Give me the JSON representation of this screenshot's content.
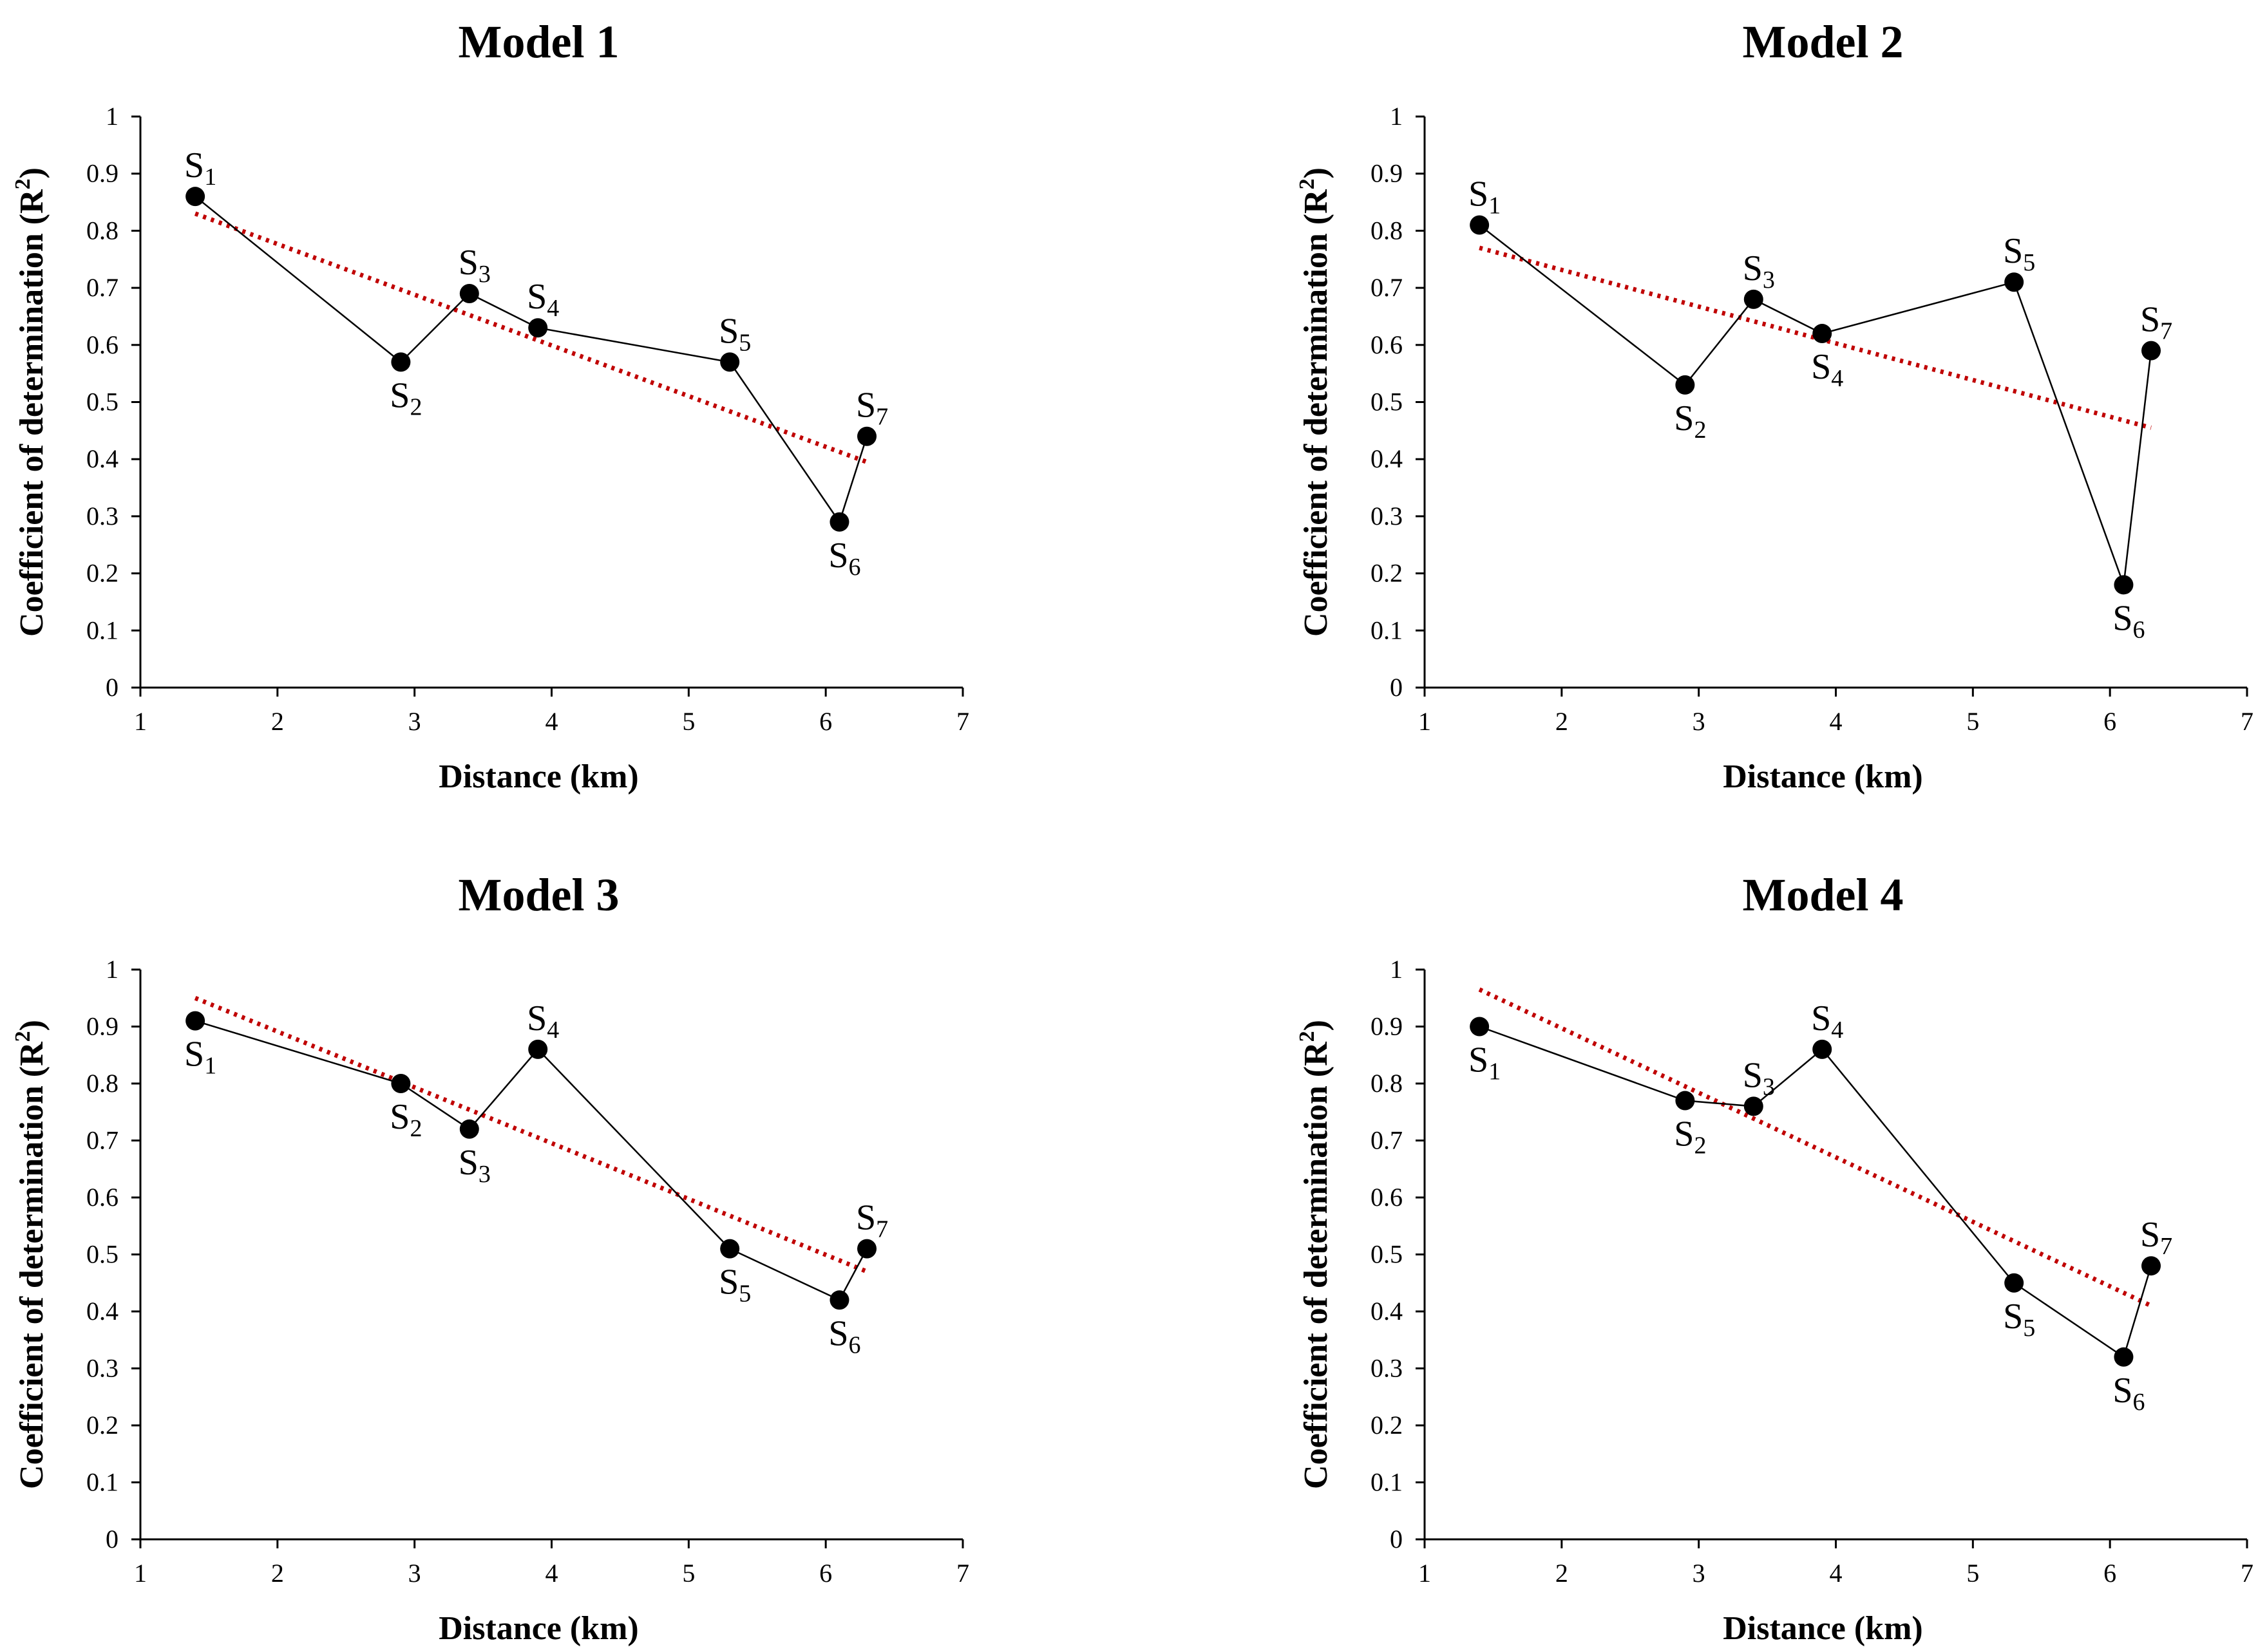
{
  "axis_defaults": {
    "ylabel_main": "Coefficient of determination (R",
    "ylabel_sup": "2",
    "ylabel_close": ")",
    "point_prefix": "S"
  },
  "colors": {
    "line": "#000000",
    "marker": "#000000",
    "trend": "#c00000",
    "axis": "#000000",
    "text": "#000000"
  },
  "chart_data": [
    {
      "type": "line",
      "title": "Model 1",
      "xlabel": "Distance (km)",
      "ylabel": "Coefficient of determination (R²)",
      "xlim": [
        1,
        7
      ],
      "ylim": [
        0,
        1
      ],
      "xticks": [
        "1",
        "2",
        "3",
        "4",
        "5",
        "6",
        "7"
      ],
      "yticks": [
        "0",
        "0.1",
        "0.2",
        "0.3",
        "0.4",
        "0.5",
        "0.6",
        "0.7",
        "0.8",
        "0.9",
        "1"
      ],
      "grid": false,
      "series": [
        {
          "name": "R²",
          "points": [
            {
              "label": "1",
              "x": 1.4,
              "y": 0.86,
              "pos": "above"
            },
            {
              "label": "2",
              "x": 2.9,
              "y": 0.57,
              "pos": "below"
            },
            {
              "label": "3",
              "x": 3.4,
              "y": 0.69,
              "pos": "above"
            },
            {
              "label": "4",
              "x": 3.9,
              "y": 0.63,
              "pos": "above"
            },
            {
              "label": "5",
              "x": 5.3,
              "y": 0.57,
              "pos": "above"
            },
            {
              "label": "6",
              "x": 6.1,
              "y": 0.29,
              "pos": "below"
            },
            {
              "label": "7",
              "x": 6.3,
              "y": 0.44,
              "pos": "above"
            }
          ]
        }
      ],
      "trendline": {
        "type": "linear",
        "x": [
          1.4,
          6.3
        ],
        "y": [
          0.83,
          0.395
        ]
      }
    },
    {
      "type": "line",
      "title": "Model 2",
      "xlabel": "Distance (km)",
      "ylabel": "Coefficient of determination (R²)",
      "xlim": [
        1,
        7
      ],
      "ylim": [
        0,
        1
      ],
      "xticks": [
        "1",
        "2",
        "3",
        "4",
        "5",
        "6",
        "7"
      ],
      "yticks": [
        "0",
        "0.1",
        "0.2",
        "0.3",
        "0.4",
        "0.5",
        "0.6",
        "0.7",
        "0.8",
        "0.9",
        "1"
      ],
      "grid": false,
      "series": [
        {
          "name": "R²",
          "points": [
            {
              "label": "1",
              "x": 1.4,
              "y": 0.81,
              "pos": "above"
            },
            {
              "label": "2",
              "x": 2.9,
              "y": 0.53,
              "pos": "below"
            },
            {
              "label": "3",
              "x": 3.4,
              "y": 0.68,
              "pos": "above"
            },
            {
              "label": "4",
              "x": 3.9,
              "y": 0.62,
              "pos": "below"
            },
            {
              "label": "5",
              "x": 5.3,
              "y": 0.71,
              "pos": "above"
            },
            {
              "label": "6",
              "x": 6.1,
              "y": 0.18,
              "pos": "below"
            },
            {
              "label": "7",
              "x": 6.3,
              "y": 0.59,
              "pos": "above"
            }
          ]
        }
      ],
      "trendline": {
        "type": "linear",
        "x": [
          1.4,
          6.3
        ],
        "y": [
          0.77,
          0.455
        ]
      }
    },
    {
      "type": "line",
      "title": "Model 3",
      "xlabel": "Distance (km)",
      "ylabel": "Coefficient of determination (R²)",
      "xlim": [
        1,
        7
      ],
      "ylim": [
        0,
        1
      ],
      "xticks": [
        "1",
        "2",
        "3",
        "4",
        "5",
        "6",
        "7"
      ],
      "yticks": [
        "0",
        "0.1",
        "0.2",
        "0.3",
        "0.4",
        "0.5",
        "0.6",
        "0.7",
        "0.8",
        "0.9",
        "1"
      ],
      "grid": false,
      "series": [
        {
          "name": "R²",
          "points": [
            {
              "label": "1",
              "x": 1.4,
              "y": 0.91,
              "pos": "below"
            },
            {
              "label": "2",
              "x": 2.9,
              "y": 0.8,
              "pos": "below"
            },
            {
              "label": "3",
              "x": 3.4,
              "y": 0.72,
              "pos": "below"
            },
            {
              "label": "4",
              "x": 3.9,
              "y": 0.86,
              "pos": "above"
            },
            {
              "label": "5",
              "x": 5.3,
              "y": 0.51,
              "pos": "below"
            },
            {
              "label": "6",
              "x": 6.1,
              "y": 0.42,
              "pos": "below"
            },
            {
              "label": "7",
              "x": 6.3,
              "y": 0.51,
              "pos": "above"
            }
          ]
        }
      ],
      "trendline": {
        "type": "linear",
        "x": [
          1.4,
          6.3
        ],
        "y": [
          0.95,
          0.47
        ]
      }
    },
    {
      "type": "line",
      "title": "Model 4",
      "xlabel": "Distance (km)",
      "ylabel": "Coefficient of determination (R²)",
      "xlim": [
        1,
        7
      ],
      "ylim": [
        0,
        1
      ],
      "xticks": [
        "1",
        "2",
        "3",
        "4",
        "5",
        "6",
        "7"
      ],
      "yticks": [
        "0",
        "0.1",
        "0.2",
        "0.3",
        "0.4",
        "0.5",
        "0.6",
        "0.7",
        "0.8",
        "0.9",
        "1"
      ],
      "grid": false,
      "series": [
        {
          "name": "R²",
          "points": [
            {
              "label": "1",
              "x": 1.4,
              "y": 0.9,
              "pos": "below"
            },
            {
              "label": "2",
              "x": 2.9,
              "y": 0.77,
              "pos": "below"
            },
            {
              "label": "3",
              "x": 3.4,
              "y": 0.76,
              "pos": "above"
            },
            {
              "label": "4",
              "x": 3.9,
              "y": 0.86,
              "pos": "above"
            },
            {
              "label": "5",
              "x": 5.3,
              "y": 0.45,
              "pos": "below"
            },
            {
              "label": "6",
              "x": 6.1,
              "y": 0.32,
              "pos": "below"
            },
            {
              "label": "7",
              "x": 6.3,
              "y": 0.48,
              "pos": "above"
            }
          ]
        }
      ],
      "trendline": {
        "type": "linear",
        "x": [
          1.4,
          6.3
        ],
        "y": [
          0.965,
          0.41
        ]
      }
    }
  ]
}
